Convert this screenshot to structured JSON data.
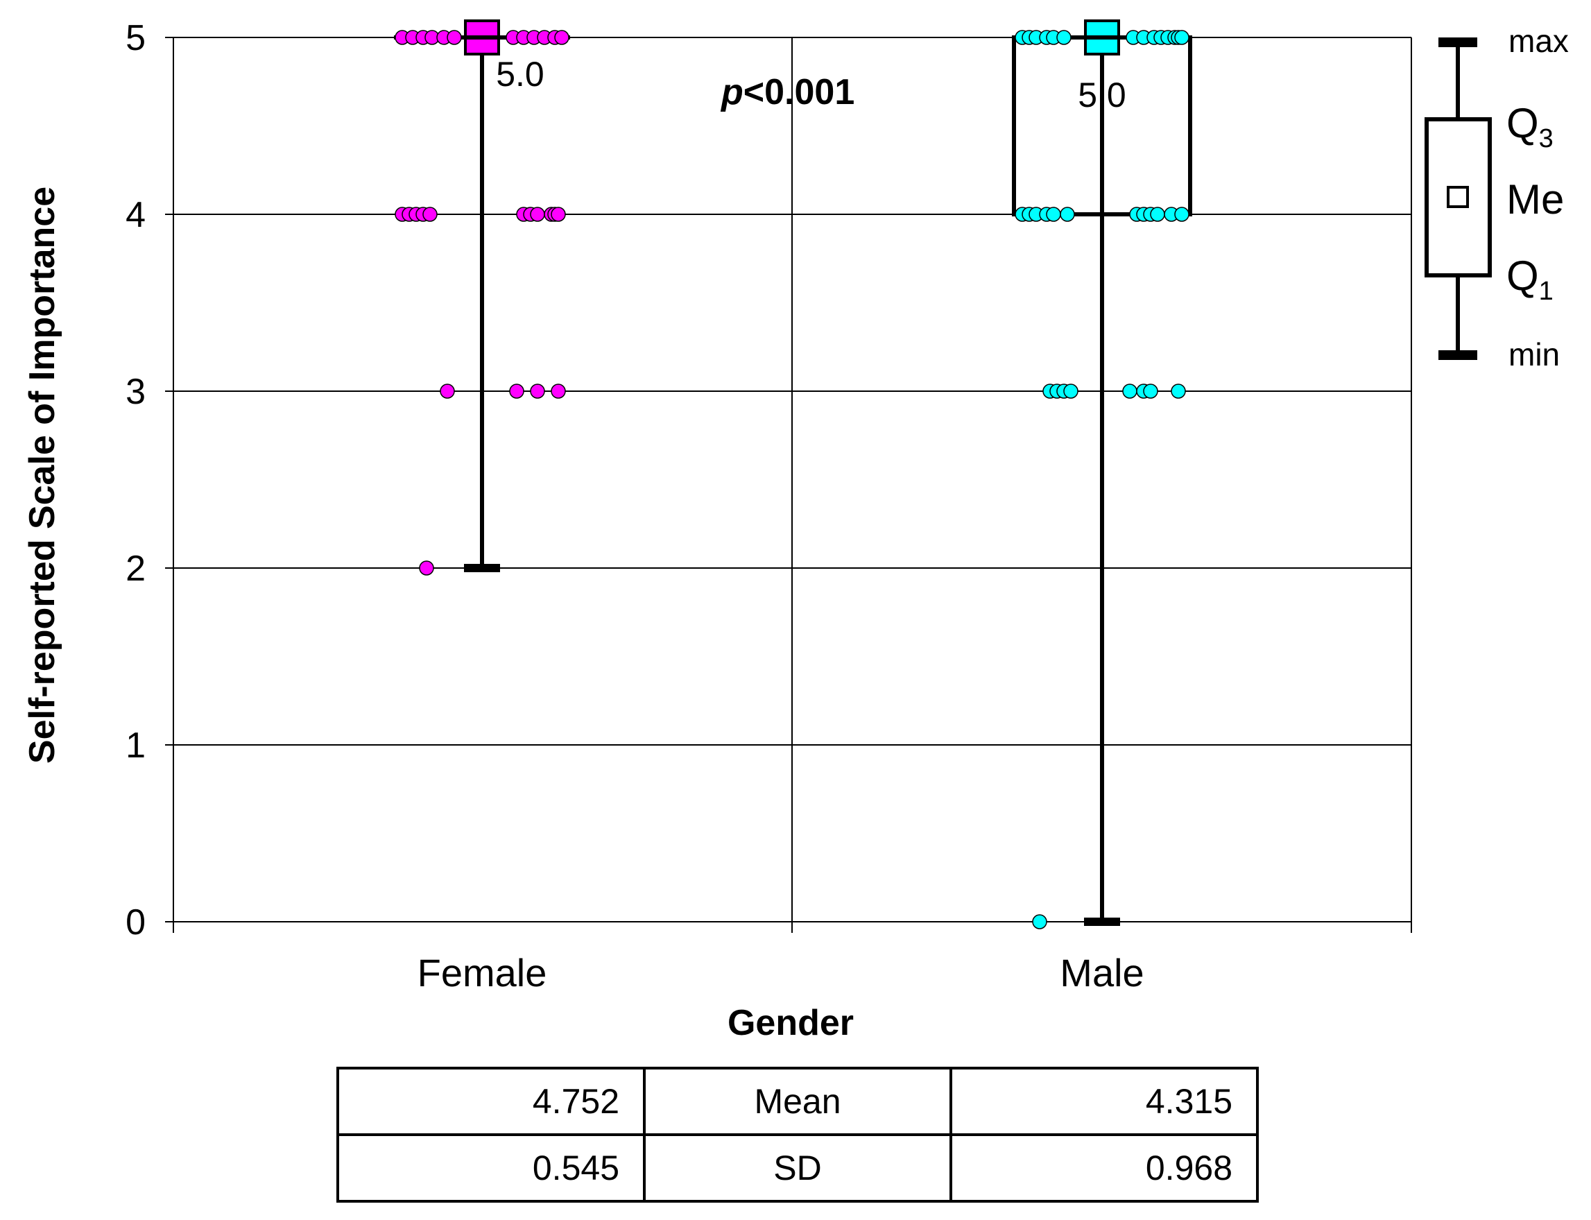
{
  "chart_data": {
    "type": "box",
    "xlabel": "Gender",
    "ylabel": "Self-reported Scale of Importance",
    "ylim": [
      0,
      5
    ],
    "yticks": [
      "0",
      "1",
      "2",
      "3",
      "4",
      "5"
    ],
    "categories": [
      "Female",
      "Male"
    ],
    "annotation": {
      "p_italic": "p",
      "p_rest": "<0.001"
    },
    "groups": [
      {
        "name": "Female",
        "color": "#FF00FF",
        "min": 2,
        "q1": 5,
        "median": 5,
        "q3": 5,
        "max": 5,
        "median_label": "5.0",
        "points": [
          {
            "y": 5,
            "dx": [
              -115,
              -100,
              -85,
              -72,
              -55,
              -40,
              45,
              60,
              75,
              90,
              105,
              115
            ]
          },
          {
            "y": 4,
            "dx": [
              -115,
              -105,
              -95,
              -85,
              -75,
              60,
              70,
              80,
              100,
              105,
              110
            ]
          },
          {
            "y": 3,
            "dx": [
              -50,
              50,
              80,
              110
            ]
          },
          {
            "y": 2,
            "dx": [
              -80
            ]
          }
        ]
      },
      {
        "name": "Male",
        "color": "#00FFFF",
        "min": 0,
        "q1": 4,
        "median": 5,
        "q3": 5,
        "max": 5,
        "median_label": "5.0",
        "points": [
          {
            "y": 5,
            "dx": [
              -115,
              -105,
              -95,
              -80,
              -70,
              -55,
              45,
              60,
              75,
              85,
              95,
              105,
              110,
              115
            ]
          },
          {
            "y": 4,
            "dx": [
              -115,
              -105,
              -95,
              -80,
              -70,
              -50,
              50,
              60,
              70,
              80,
              100,
              115
            ]
          },
          {
            "y": 3,
            "dx": [
              -75,
              -65,
              -55,
              -45,
              40,
              60,
              70,
              110
            ]
          },
          {
            "y": 0,
            "dx": [
              -90
            ]
          }
        ]
      }
    ],
    "legend": {
      "max": "max",
      "q3_main": "Q",
      "q3_sub": "3",
      "me": "Me",
      "q1_main": "Q",
      "q1_sub": "1",
      "min": "min"
    }
  },
  "stats_table": {
    "rows": [
      {
        "female": "4.752",
        "label": "Mean",
        "male": "4.315"
      },
      {
        "female": "0.545",
        "label": "SD",
        "male": "0.968"
      }
    ]
  }
}
